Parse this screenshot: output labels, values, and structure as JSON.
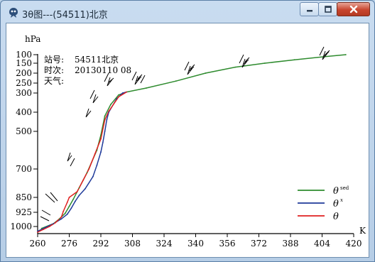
{
  "window": {
    "title": "3θ图---(54511)北京",
    "buttons": {
      "minimize": "minimize",
      "maximize": "maximize",
      "close": "close"
    }
  },
  "station": {
    "label_station": "站号:",
    "station_value": "54511北京",
    "label_time": "时次:",
    "time_value": "20130110 08",
    "label_weather": "天气:",
    "weather_value": ""
  },
  "chart_data": {
    "type": "line",
    "y_unit": "hPa",
    "x_unit": "K",
    "x_ticks": [
      260,
      276,
      292,
      308,
      324,
      340,
      356,
      372,
      388,
      404,
      420
    ],
    "xlim": [
      260,
      420
    ],
    "y_ticks": [
      100,
      150,
      200,
      250,
      300,
      400,
      500,
      700,
      850,
      925,
      1000
    ],
    "ylim": [
      100,
      1030
    ],
    "series": [
      {
        "name": "θsed",
        "color": "#2e8b2e",
        "points": [
          [
            262,
            1010
          ],
          [
            268,
            985
          ],
          [
            271,
            960
          ],
          [
            274,
            930
          ],
          [
            276,
            895
          ],
          [
            278,
            860
          ],
          [
            281,
            800
          ],
          [
            285,
            720
          ],
          [
            290,
            600
          ],
          [
            292,
            520
          ],
          [
            294,
            420
          ],
          [
            297,
            360
          ],
          [
            301,
            310
          ],
          [
            305,
            295
          ],
          [
            315,
            275
          ],
          [
            330,
            240
          ],
          [
            345,
            200
          ],
          [
            360,
            170
          ],
          [
            375,
            150
          ],
          [
            390,
            130
          ],
          [
            405,
            112
          ],
          [
            416,
            100
          ]
        ]
      },
      {
        "name": "θx",
        "color": "#1f3a9a",
        "points": [
          [
            260,
            1025
          ],
          [
            264,
            1005
          ],
          [
            268,
            985
          ],
          [
            272,
            960
          ],
          [
            275,
            935
          ],
          [
            277,
            905
          ],
          [
            279,
            870
          ],
          [
            281,
            840
          ],
          [
            284,
            805
          ],
          [
            288,
            740
          ],
          [
            290,
            680
          ],
          [
            292,
            610
          ],
          [
            293,
            560
          ],
          [
            294,
            500
          ],
          [
            295,
            440
          ],
          [
            296,
            400
          ],
          [
            300,
            330
          ],
          [
            303,
            300
          ],
          [
            305,
            295
          ]
        ]
      },
      {
        "name": "θ",
        "color": "#e02020",
        "points": [
          [
            260,
            1030
          ],
          [
            263,
            1015
          ],
          [
            266,
            1000
          ],
          [
            269,
            980
          ],
          [
            272,
            950
          ],
          [
            273,
            920
          ],
          [
            275,
            875
          ],
          [
            276,
            850
          ],
          [
            280,
            820
          ],
          [
            283,
            760
          ],
          [
            286,
            700
          ],
          [
            289,
            620
          ],
          [
            292,
            540
          ],
          [
            294,
            440
          ],
          [
            296,
            395
          ],
          [
            301,
            320
          ],
          [
            305,
            295
          ]
        ]
      }
    ]
  },
  "legend": {
    "items": [
      {
        "label": "θ",
        "sup": "sed",
        "color": "#2e8b2e"
      },
      {
        "label": "θ",
        "sup": "x",
        "color": "#1f3a9a"
      },
      {
        "label": "θ",
        "sup": "",
        "color": "#e02020"
      }
    ],
    "placement": "bottom-right"
  }
}
